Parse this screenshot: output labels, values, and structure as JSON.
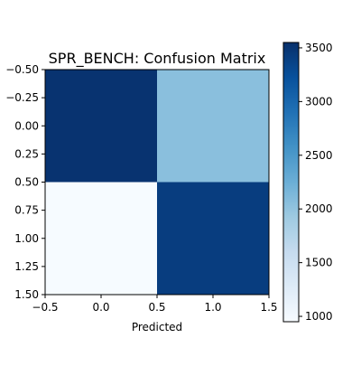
{
  "chart_data": {
    "type": "heatmap",
    "title": "SPR_BENCH: Confusion Matrix",
    "xlabel": "Predicted",
    "ylabel": "",
    "xlim": [
      -0.5,
      1.5
    ],
    "ylim": [
      1.5,
      -0.5
    ],
    "x_ticks": [
      -0.5,
      0.0,
      0.5,
      1.0,
      1.5
    ],
    "x_tick_labels": [
      "−0.5",
      "0.0",
      "0.5",
      "1.0",
      "1.5"
    ],
    "y_ticks": [
      -0.5,
      -0.25,
      0.0,
      0.25,
      0.5,
      0.75,
      1.0,
      1.25,
      1.5
    ],
    "y_tick_labels": [
      "−0.50",
      "−0.25",
      "0.00",
      "0.25",
      "0.50",
      "0.75",
      "1.00",
      "1.25",
      "1.50"
    ],
    "matrix": [
      [
        3520,
        2050
      ],
      [
        960,
        3420
      ]
    ],
    "colormap": "Blues",
    "colorbar": {
      "min": 950,
      "max": 3550,
      "ticks": [
        1000,
        1500,
        2000,
        2500,
        3000,
        3500
      ],
      "tick_labels": [
        "1000",
        "1500",
        "2000",
        "2500",
        "3000",
        "3500"
      ]
    },
    "grid": false
  }
}
